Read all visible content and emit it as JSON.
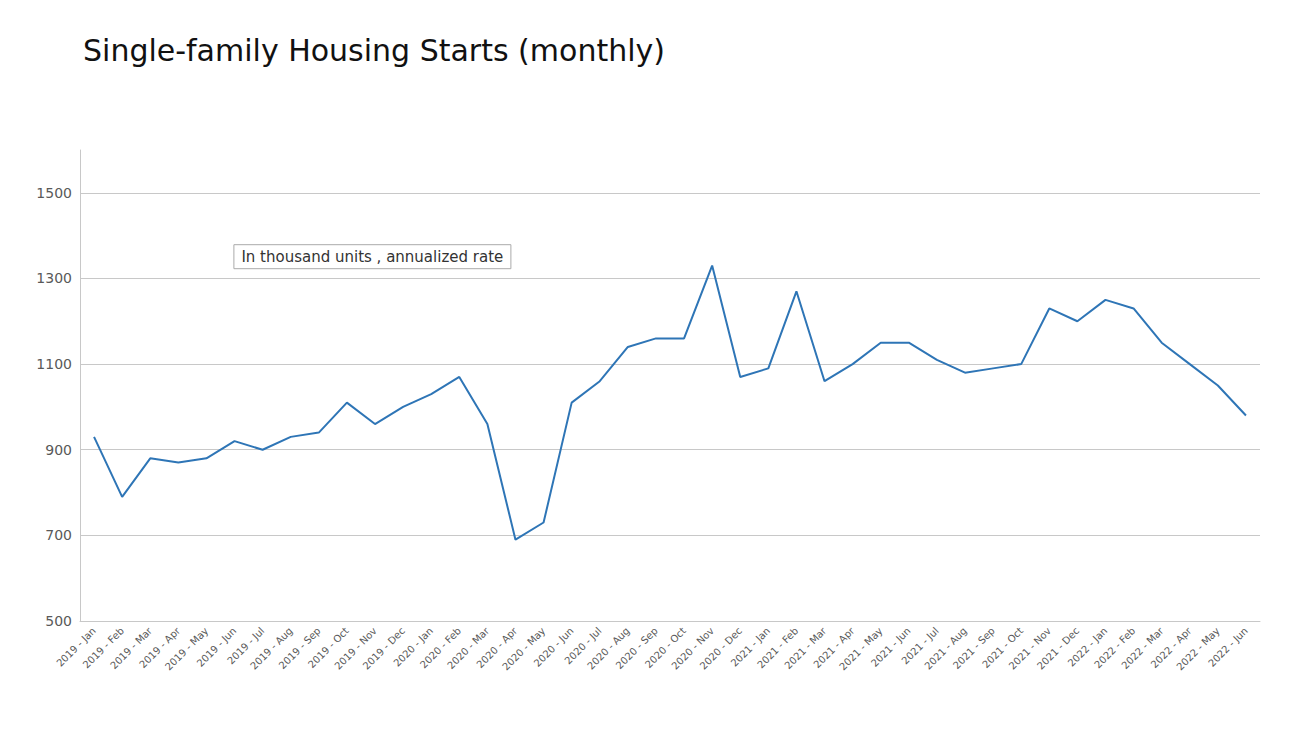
{
  "chart_data": {
    "type": "line",
    "title": "Single-family Housing Starts (monthly)",
    "subtitle": "In thousand units , annualized rate",
    "categories": [
      "2019 - Jan",
      "2019 - Feb",
      "2019 - Mar",
      "2019 - Apr",
      "2019 - May",
      "2019 - Jun",
      "2019 - Jul",
      "2019 - Aug",
      "2019 - Sep",
      "2019 - Oct",
      "2019 - Nov",
      "2019 - Dec",
      "2020 - Jan",
      "2020 - Feb",
      "2020 - Mar",
      "2020 - Apr",
      "2020 - May",
      "2020 - Jun",
      "2020 - Jul",
      "2020 - Aug",
      "2020 - Sep",
      "2020 - Oct",
      "2020 - Nov",
      "2020 - Dec",
      "2021 - Jan",
      "2021 - Feb",
      "2021 - Mar",
      "2021 - Apr",
      "2021 - May",
      "2021 - Jun",
      "2021 - Jul",
      "2021 - Aug",
      "2021 - Sep",
      "2021 - Oct",
      "2021 - Nov",
      "2021 - Dec",
      "2022 - Jan",
      "2022 - Feb",
      "2022 - Mar",
      "2022 - Apr",
      "2022 - May",
      "2022 - Jun"
    ],
    "values": [
      930,
      790,
      880,
      870,
      880,
      920,
      900,
      930,
      940,
      1010,
      960,
      1000,
      1030,
      1070,
      960,
      690,
      730,
      1010,
      1060,
      1140,
      1160,
      1160,
      1330,
      1070,
      1090,
      1270,
      1060,
      1100,
      1150,
      1150,
      1110,
      1080,
      1090,
      1100,
      1230,
      1200,
      1250,
      1230,
      1150,
      1100,
      1050,
      980
    ],
    "color": "#2E75B6",
    "ylim": [
      500,
      1600
    ],
    "yticks": [
      500,
      700,
      900,
      1100,
      1300,
      1500
    ],
    "grid": true
  }
}
